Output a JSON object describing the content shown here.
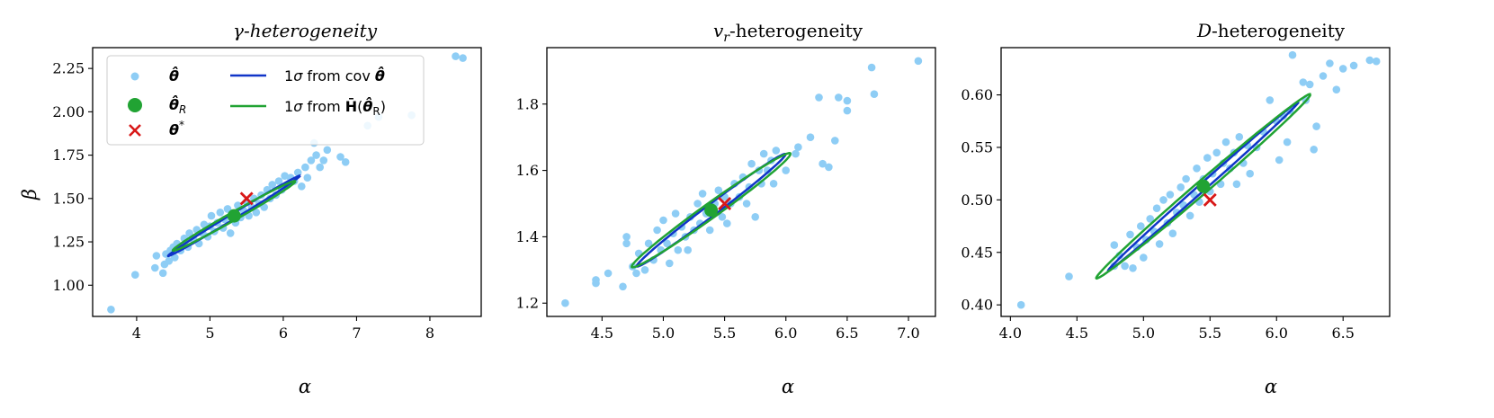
{
  "chart_data": [
    {
      "type": "scatter",
      "title": "γ-heterogeneity",
      "xlabel": "α",
      "ylabel": "β",
      "xlim": [
        3.4,
        8.7
      ],
      "ylim": [
        0.82,
        2.37
      ],
      "xticks": [
        4,
        5,
        6,
        7,
        8
      ],
      "xtick_labels": [
        "4",
        "5",
        "6",
        "7",
        "8"
      ],
      "yticks": [
        1.0,
        1.25,
        1.5,
        1.75,
        2.0,
        2.25
      ],
      "ytick_labels": [
        "1.00",
        "1.25",
        "1.50",
        "1.75",
        "2.00",
        "2.25"
      ],
      "legend": {
        "placement": "top-left",
        "entries": [
          {
            "label": "θ̂",
            "marker": "dot",
            "color": "#8ecdf5"
          },
          {
            "label": "θ̂_R",
            "marker": "big-dot",
            "color": "#21a333"
          },
          {
            "label": "θ*",
            "marker": "cross",
            "color": "#d81818"
          },
          {
            "label": "1σ from cov θ̂",
            "marker": "line",
            "color": "#1035c8"
          },
          {
            "label": "1σ from H̄(θ̂_R)",
            "marker": "line",
            "color": "#21a333"
          }
        ]
      },
      "points": [
        [
          3.65,
          0.86
        ],
        [
          3.98,
          1.06
        ],
        [
          4.25,
          1.1
        ],
        [
          4.27,
          1.17
        ],
        [
          4.36,
          1.07
        ],
        [
          4.38,
          1.12
        ],
        [
          4.4,
          1.18
        ],
        [
          4.44,
          1.14
        ],
        [
          4.46,
          1.2
        ],
        [
          4.5,
          1.22
        ],
        [
          4.52,
          1.16
        ],
        [
          4.55,
          1.24
        ],
        [
          4.6,
          1.2
        ],
        [
          4.65,
          1.27
        ],
        [
          4.7,
          1.22
        ],
        [
          4.72,
          1.3
        ],
        [
          4.78,
          1.26
        ],
        [
          4.82,
          1.32
        ],
        [
          4.85,
          1.24
        ],
        [
          4.9,
          1.3
        ],
        [
          4.92,
          1.35
        ],
        [
          4.97,
          1.28
        ],
        [
          5.0,
          1.34
        ],
        [
          5.02,
          1.4
        ],
        [
          5.06,
          1.31
        ],
        [
          5.1,
          1.36
        ],
        [
          5.14,
          1.42
        ],
        [
          5.18,
          1.33
        ],
        [
          5.2,
          1.38
        ],
        [
          5.24,
          1.44
        ],
        [
          5.28,
          1.3
        ],
        [
          5.3,
          1.41
        ],
        [
          5.35,
          1.36
        ],
        [
          5.38,
          1.46
        ],
        [
          5.42,
          1.39
        ],
        [
          5.46,
          1.43
        ],
        [
          5.5,
          1.48
        ],
        [
          5.53,
          1.4
        ],
        [
          5.57,
          1.45
        ],
        [
          5.6,
          1.5
        ],
        [
          5.63,
          1.42
        ],
        [
          5.67,
          1.47
        ],
        [
          5.7,
          1.52
        ],
        [
          5.74,
          1.45
        ],
        [
          5.78,
          1.55
        ],
        [
          5.82,
          1.5
        ],
        [
          5.85,
          1.58
        ],
        [
          5.9,
          1.52
        ],
        [
          5.94,
          1.6
        ],
        [
          5.98,
          1.55
        ],
        [
          6.02,
          1.63
        ],
        [
          6.06,
          1.58
        ],
        [
          6.1,
          1.62
        ],
        [
          6.15,
          1.6
        ],
        [
          6.2,
          1.65
        ],
        [
          6.25,
          1.57
        ],
        [
          6.3,
          1.68
        ],
        [
          6.33,
          1.62
        ],
        [
          6.38,
          1.72
        ],
        [
          6.42,
          1.82
        ],
        [
          6.45,
          1.75
        ],
        [
          6.5,
          1.68
        ],
        [
          6.55,
          1.72
        ],
        [
          6.6,
          1.78
        ],
        [
          6.78,
          1.74
        ],
        [
          6.85,
          1.71
        ],
        [
          7.15,
          1.92
        ],
        [
          7.3,
          1.97
        ],
        [
          7.75,
          1.98
        ],
        [
          8.35,
          2.32
        ],
        [
          8.45,
          2.31
        ]
      ],
      "theta_R": [
        5.33,
        1.4
      ],
      "theta_star": [
        5.5,
        1.5
      ],
      "ellipses": [
        {
          "name": "1σ from cov θ̂",
          "color": "#1035c8",
          "center": [
            5.33,
            1.4
          ],
          "semi_major": 0.93,
          "semi_minor": 0.019,
          "angle_deg": 14.4
        },
        {
          "name": "1σ from H̄(θ̂_R)",
          "color": "#21a333",
          "center": [
            5.33,
            1.4
          ],
          "semi_major": 0.86,
          "semi_minor": 0.027,
          "angle_deg": 13.4
        }
      ]
    },
    {
      "type": "scatter",
      "title": "v_r-heterogeneity",
      "xlabel": "α",
      "ylabel": "",
      "xlim": [
        4.05,
        7.22
      ],
      "ylim": [
        1.16,
        1.97
      ],
      "xticks": [
        4.5,
        5.0,
        5.5,
        6.0,
        6.5,
        7.0
      ],
      "xtick_labels": [
        "4.5",
        "5.0",
        "5.5",
        "6.0",
        "6.5",
        "7.0"
      ],
      "yticks": [
        1.2,
        1.4,
        1.6,
        1.8
      ],
      "ytick_labels": [
        "1.2",
        "1.4",
        "1.6",
        "1.8"
      ],
      "points": [
        [
          4.2,
          1.2
        ],
        [
          4.45,
          1.26
        ],
        [
          4.45,
          1.27
        ],
        [
          4.55,
          1.29
        ],
        [
          4.67,
          1.25
        ],
        [
          4.7,
          1.38
        ],
        [
          4.7,
          1.4
        ],
        [
          4.75,
          1.31
        ],
        [
          4.78,
          1.29
        ],
        [
          4.8,
          1.35
        ],
        [
          4.85,
          1.3
        ],
        [
          4.88,
          1.38
        ],
        [
          4.92,
          1.33
        ],
        [
          4.95,
          1.42
        ],
        [
          4.98,
          1.36
        ],
        [
          5.0,
          1.45
        ],
        [
          5.03,
          1.38
        ],
        [
          5.05,
          1.32
        ],
        [
          5.08,
          1.41
        ],
        [
          5.1,
          1.47
        ],
        [
          5.12,
          1.36
        ],
        [
          5.15,
          1.43
        ],
        [
          5.18,
          1.4
        ],
        [
          5.2,
          1.36
        ],
        [
          5.22,
          1.46
        ],
        [
          5.25,
          1.42
        ],
        [
          5.28,
          1.5
        ],
        [
          5.3,
          1.44
        ],
        [
          5.32,
          1.53
        ],
        [
          5.35,
          1.47
        ],
        [
          5.38,
          1.42
        ],
        [
          5.42,
          1.5
        ],
        [
          5.45,
          1.54
        ],
        [
          5.48,
          1.46
        ],
        [
          5.5,
          1.52
        ],
        [
          5.52,
          1.44
        ],
        [
          5.55,
          1.5
        ],
        [
          5.58,
          1.56
        ],
        [
          5.62,
          1.52
        ],
        [
          5.65,
          1.58
        ],
        [
          5.68,
          1.5
        ],
        [
          5.7,
          1.55
        ],
        [
          5.72,
          1.62
        ],
        [
          5.75,
          1.46
        ],
        [
          5.78,
          1.6
        ],
        [
          5.8,
          1.56
        ],
        [
          5.82,
          1.65
        ],
        [
          5.85,
          1.6
        ],
        [
          5.88,
          1.63
        ],
        [
          5.9,
          1.56
        ],
        [
          5.92,
          1.66
        ],
        [
          6.0,
          1.6
        ],
        [
          6.08,
          1.65
        ],
        [
          6.1,
          1.67
        ],
        [
          6.2,
          1.7
        ],
        [
          6.27,
          1.82
        ],
        [
          6.3,
          1.62
        ],
        [
          6.35,
          1.61
        ],
        [
          6.4,
          1.69
        ],
        [
          6.43,
          1.82
        ],
        [
          6.5,
          1.78
        ],
        [
          6.5,
          1.81
        ],
        [
          6.7,
          1.91
        ],
        [
          6.72,
          1.83
        ],
        [
          7.08,
          1.93
        ]
      ],
      "theta_R": [
        5.39,
        1.48
      ],
      "theta_star": [
        5.5,
        1.5
      ],
      "ellipses": [
        {
          "name": "1σ from cov θ̂",
          "color": "#1035c8",
          "center": [
            5.39,
            1.48
          ],
          "semi_major": 0.63,
          "semi_minor": 0.022,
          "angle_deg": 15.5
        },
        {
          "name": "1σ from H̄(θ̂_R)",
          "color": "#21a333",
          "center": [
            5.39,
            1.48
          ],
          "semi_major": 0.67,
          "semi_minor": 0.028,
          "angle_deg": 14.7
        }
      ]
    },
    {
      "type": "scatter",
      "title": "D-heterogeneity",
      "xlabel": "α",
      "ylabel": "",
      "xlim": [
        3.93,
        6.85
      ],
      "ylim": [
        0.389,
        0.645
      ],
      "xticks": [
        4.0,
        4.5,
        5.0,
        5.5,
        6.0,
        6.5
      ],
      "xtick_labels": [
        "4.0",
        "4.5",
        "5.0",
        "5.5",
        "6.0",
        "6.5"
      ],
      "yticks": [
        0.4,
        0.45,
        0.5,
        0.55,
        0.6
      ],
      "ytick_labels": [
        "0.40",
        "0.45",
        "0.50",
        "0.55",
        "0.60"
      ],
      "points": [
        [
          4.08,
          0.4
        ],
        [
          4.44,
          0.427
        ],
        [
          4.78,
          0.437
        ],
        [
          4.78,
          0.457
        ],
        [
          4.82,
          0.447
        ],
        [
          4.86,
          0.437
        ],
        [
          4.9,
          0.467
        ],
        [
          4.92,
          0.435
        ],
        [
          4.95,
          0.455
        ],
        [
          4.98,
          0.475
        ],
        [
          5.0,
          0.445
        ],
        [
          5.02,
          0.462
        ],
        [
          5.05,
          0.482
        ],
        [
          5.08,
          0.47
        ],
        [
          5.1,
          0.492
        ],
        [
          5.12,
          0.458
        ],
        [
          5.15,
          0.5
        ],
        [
          5.18,
          0.478
        ],
        [
          5.2,
          0.505
        ],
        [
          5.22,
          0.468
        ],
        [
          5.25,
          0.488
        ],
        [
          5.28,
          0.512
        ],
        [
          5.3,
          0.495
        ],
        [
          5.32,
          0.52
        ],
        [
          5.35,
          0.485
        ],
        [
          5.38,
          0.505
        ],
        [
          5.4,
          0.53
        ],
        [
          5.42,
          0.498
        ],
        [
          5.45,
          0.52
        ],
        [
          5.48,
          0.54
        ],
        [
          5.5,
          0.508
        ],
        [
          5.52,
          0.525
        ],
        [
          5.55,
          0.545
        ],
        [
          5.58,
          0.515
        ],
        [
          5.6,
          0.535
        ],
        [
          5.62,
          0.555
        ],
        [
          5.65,
          0.53
        ],
        [
          5.68,
          0.545
        ],
        [
          5.7,
          0.515
        ],
        [
          5.72,
          0.56
        ],
        [
          5.75,
          0.535
        ],
        [
          5.78,
          0.552
        ],
        [
          5.8,
          0.525
        ],
        [
          5.85,
          0.55
        ],
        [
          5.9,
          0.565
        ],
        [
          5.95,
          0.595
        ],
        [
          6.0,
          0.575
        ],
        [
          6.02,
          0.538
        ],
        [
          6.05,
          0.58
        ],
        [
          6.08,
          0.555
        ],
        [
          6.1,
          0.585
        ],
        [
          6.12,
          0.638
        ],
        [
          6.2,
          0.612
        ],
        [
          6.22,
          0.595
        ],
        [
          6.25,
          0.61
        ],
        [
          6.28,
          0.548
        ],
        [
          6.3,
          0.57
        ],
        [
          6.35,
          0.618
        ],
        [
          6.4,
          0.63
        ],
        [
          6.45,
          0.605
        ],
        [
          6.5,
          0.625
        ],
        [
          6.58,
          0.628
        ],
        [
          6.7,
          0.633
        ],
        [
          6.75,
          0.632
        ]
      ],
      "theta_R": [
        5.45,
        0.513
      ],
      "theta_star": [
        5.5,
        0.5
      ],
      "ellipses": [
        {
          "name": "1σ from cov θ̂",
          "color": "#1035c8",
          "center": [
            5.45,
            0.513
          ],
          "semi_major": 0.72,
          "semi_minor": 0.0045,
          "angle_deg": 6.4
        },
        {
          "name": "1σ from H̄(θ̂_R)",
          "color": "#21a333",
          "center": [
            5.45,
            0.513
          ],
          "semi_major": 0.81,
          "semi_minor": 0.008,
          "angle_deg": 6.2
        }
      ]
    }
  ]
}
